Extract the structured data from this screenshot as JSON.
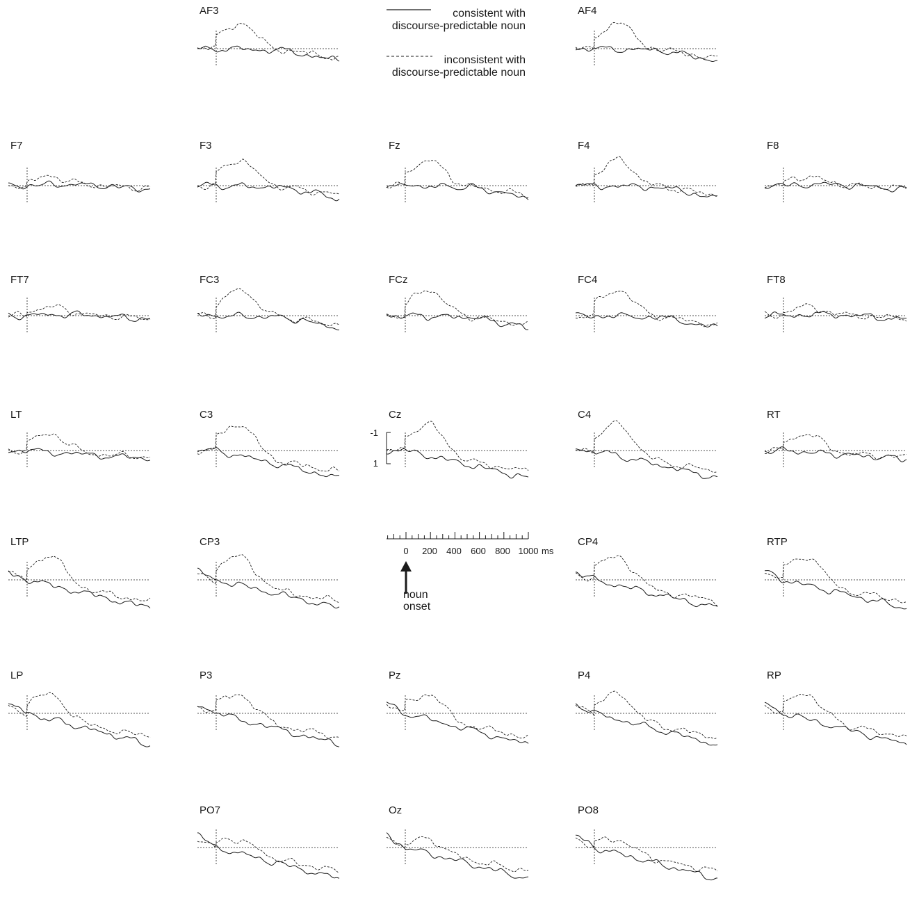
{
  "chart_data": {
    "type": "line",
    "legend": {
      "placement": "top-center",
      "entries": [
        {
          "style": "solid",
          "line1": "consistent with",
          "line2": "discourse-predictable noun"
        },
        {
          "style": "dashed",
          "line1": "inconsistent with",
          "line2": "discourse-predictable noun"
        }
      ]
    },
    "x_axis": {
      "unit": "ms",
      "range": [
        -150,
        1000
      ],
      "tick_labels": [
        "0",
        "200",
        "400",
        "600",
        "800",
        "1000"
      ],
      "unit_label": "ms"
    },
    "y_axis": {
      "range": [
        -1,
        1
      ],
      "tick_labels": [
        "-1",
        "1"
      ],
      "note": "negative plotted up"
    },
    "annotation": {
      "line1": "noun",
      "line2": "onset"
    },
    "electrodes": [
      {
        "name": "AF3",
        "c": 1,
        "r": 0,
        "fam": "front",
        "seed": 11
      },
      {
        "name": "AF4",
        "c": 3,
        "r": 0,
        "fam": "front",
        "seed": 12
      },
      {
        "name": "F7",
        "c": 0,
        "r": 1,
        "fam": "temporal",
        "seed": 13
      },
      {
        "name": "F3",
        "c": 1,
        "r": 1,
        "fam": "front",
        "seed": 14
      },
      {
        "name": "Fz",
        "c": 2,
        "r": 1,
        "fam": "front",
        "seed": 15
      },
      {
        "name": "F4",
        "c": 3,
        "r": 1,
        "fam": "front",
        "seed": 16
      },
      {
        "name": "F8",
        "c": 4,
        "r": 1,
        "fam": "temporal",
        "seed": 17
      },
      {
        "name": "FT7",
        "c": 0,
        "r": 2,
        "fam": "temporal",
        "seed": 18
      },
      {
        "name": "FC3",
        "c": 1,
        "r": 2,
        "fam": "front",
        "seed": 19
      },
      {
        "name": "FCz",
        "c": 2,
        "r": 2,
        "fam": "front",
        "seed": 20
      },
      {
        "name": "FC4",
        "c": 3,
        "r": 2,
        "fam": "front",
        "seed": 21
      },
      {
        "name": "FT8",
        "c": 4,
        "r": 2,
        "fam": "temporal",
        "seed": 22
      },
      {
        "name": "LT",
        "c": 0,
        "r": 3,
        "fam": "lt",
        "seed": 23
      },
      {
        "name": "C3",
        "c": 1,
        "r": 3,
        "fam": "central",
        "seed": 24
      },
      {
        "name": "Cz",
        "c": 2,
        "r": 3,
        "fam": "central",
        "seed": 25
      },
      {
        "name": "C4",
        "c": 3,
        "r": 3,
        "fam": "central",
        "seed": 26
      },
      {
        "name": "RT",
        "c": 4,
        "r": 3,
        "fam": "lt",
        "seed": 27
      },
      {
        "name": "LTP",
        "c": 0,
        "r": 4,
        "fam": "cp",
        "seed": 28
      },
      {
        "name": "CP3",
        "c": 1,
        "r": 4,
        "fam": "cp",
        "seed": 29
      },
      {
        "name": "CP4",
        "c": 3,
        "r": 4,
        "fam": "cp",
        "seed": 30
      },
      {
        "name": "RTP",
        "c": 4,
        "r": 4,
        "fam": "cp",
        "seed": 31
      },
      {
        "name": "LP",
        "c": 0,
        "r": 5,
        "fam": "par",
        "seed": 32
      },
      {
        "name": "P3",
        "c": 1,
        "r": 5,
        "fam": "par",
        "seed": 33
      },
      {
        "name": "Pz",
        "c": 2,
        "r": 5,
        "fam": "par",
        "seed": 34
      },
      {
        "name": "P4",
        "c": 3,
        "r": 5,
        "fam": "par",
        "seed": 35
      },
      {
        "name": "RP",
        "c": 4,
        "r": 5,
        "fam": "par",
        "seed": 36
      },
      {
        "name": "PO7",
        "c": 1,
        "r": 6,
        "fam": "occ",
        "seed": 37
      },
      {
        "name": "Oz",
        "c": 2,
        "r": 6,
        "fam": "occ",
        "seed": 38
      },
      {
        "name": "PO8",
        "c": 3,
        "r": 6,
        "fam": "occ",
        "seed": 39
      }
    ]
  }
}
